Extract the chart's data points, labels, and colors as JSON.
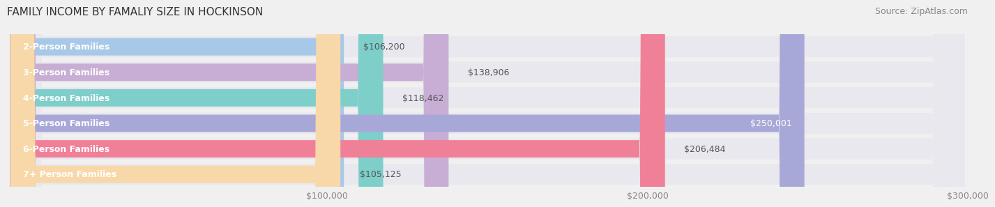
{
  "title": "FAMILY INCOME BY FAMALIY SIZE IN HOCKINSON",
  "source": "Source: ZipAtlas.com",
  "categories": [
    "2-Person Families",
    "3-Person Families",
    "4-Person Families",
    "5-Person Families",
    "6-Person Families",
    "7+ Person Families"
  ],
  "values": [
    106200,
    138906,
    118462,
    250001,
    206484,
    105125
  ],
  "bar_colors": [
    "#a8c8e8",
    "#c8aed4",
    "#7ececa",
    "#a8a8d8",
    "#f08098",
    "#f8d8a8"
  ],
  "label_values": [
    "$106,200",
    "$138,906",
    "$118,462",
    "$250,001",
    "$206,484",
    "$105,125"
  ],
  "value_inside": [
    false,
    false,
    false,
    true,
    false,
    false
  ],
  "xlim": [
    0,
    300000
  ],
  "xticks": [
    100000,
    200000,
    300000
  ],
  "xtick_labels": [
    "$100,000",
    "$200,000",
    "$300,000"
  ],
  "background_color": "#f0f0f0",
  "bar_bg_color": "#e8e8ee",
  "title_fontsize": 11,
  "source_fontsize": 9,
  "label_fontsize": 9,
  "category_fontsize": 9,
  "value_label_dark": "#555555",
  "value_label_light": "#ffffff"
}
